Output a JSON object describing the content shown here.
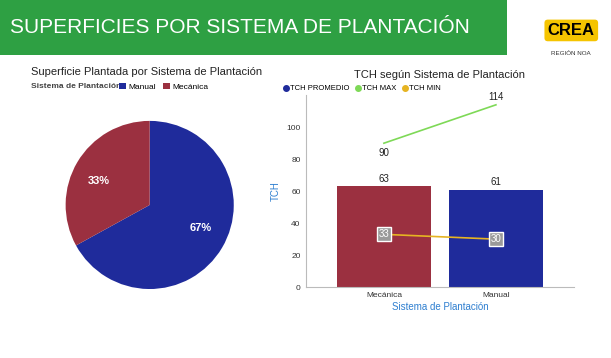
{
  "header": {
    "title": "SUPERFICIES POR SISTEMA DE PLANTACIÓN",
    "logo": "CREA",
    "logo_subtitle": "REGIÓN NOA"
  },
  "chart_data": [
    {
      "type": "pie",
      "title": "Superficie Plantada por Sistema de Plantación",
      "legend_title": "Sistema de Plantación",
      "categories": [
        "Manual",
        "Mecánica"
      ],
      "values": [
        67,
        33
      ],
      "value_labels": [
        "67%",
        "33%"
      ],
      "colors": [
        "#1f2b9b",
        "#9b3040"
      ],
      "data_labels": true
    },
    {
      "type": "bar",
      "title": "TCH según Sistema de Plantación",
      "x_label": "Sistema de Plantación",
      "y_label": "TCH",
      "categories": [
        "Mecánica",
        "Manual"
      ],
      "ylim": [
        0,
        120
      ],
      "yticks": [
        0,
        20,
        40,
        60,
        80,
        100
      ],
      "data_labels": true,
      "series": [
        {
          "name": "TCH PROMEDIO",
          "type": "bar",
          "color": "#1f2b9b",
          "colors": [
            "#9b3040",
            "#1f2b9b"
          ],
          "values": [
            63,
            61
          ]
        },
        {
          "name": "TCH MAX",
          "type": "line",
          "color": "#7ed957",
          "values": [
            90,
            114
          ]
        },
        {
          "name": "TCH MIN",
          "type": "line",
          "color": "#e6b422",
          "values": [
            33,
            30
          ]
        }
      ]
    }
  ]
}
